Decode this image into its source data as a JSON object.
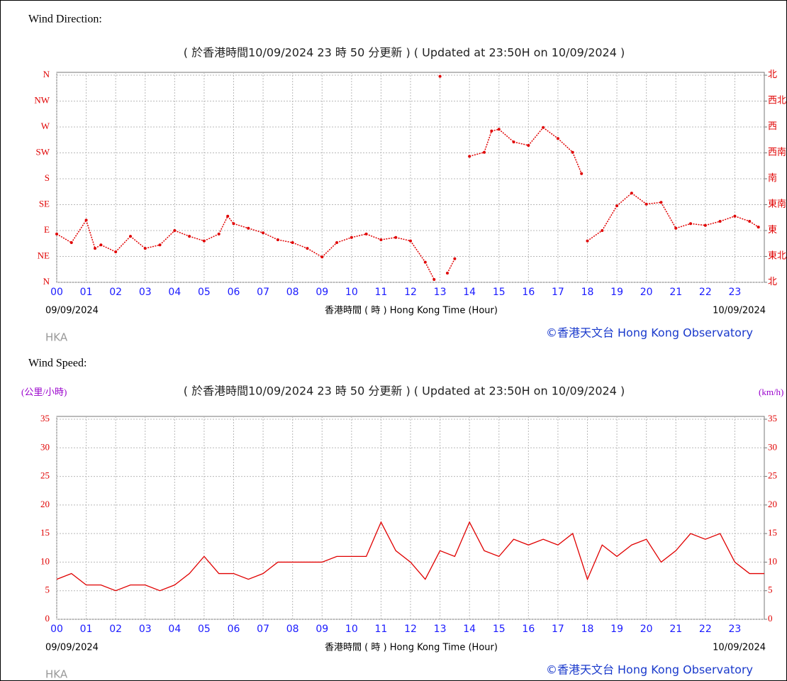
{
  "chart_data": [
    {
      "type": "scatter",
      "heading": "Wind Direction:",
      "subtitle": "( 於香港時間10/09/2024 23 時 50 分更新 ) ( Updated at 23:50H on 10/09/2024 )",
      "x_label": "香港時間 ( 時 ) Hong Kong Time (Hour)",
      "start_date": "09/09/2024",
      "end_date": "10/09/2024",
      "station": "HKA",
      "credit": "©香港天文台 Hong Kong Observatory",
      "color": "#e00000",
      "x": [
        0,
        0.5,
        1,
        1.3,
        1.5,
        2,
        2.5,
        3,
        3.5,
        4,
        4.5,
        5,
        5.5,
        5.8,
        6,
        6.5,
        7,
        7.5,
        8,
        8.5,
        9,
        9.5,
        10,
        10.5,
        11,
        11.5,
        12,
        12.5,
        12.8,
        13,
        13.25,
        13.5,
        14,
        14.5,
        14.75,
        15,
        15.5,
        16,
        16.5,
        17,
        17.5,
        17.8,
        18,
        18.5,
        19,
        19.5,
        20,
        20.5,
        21,
        21.5,
        22,
        22.5,
        23,
        23.5,
        23.8
      ],
      "values": [
        84,
        69,
        108,
        59,
        65,
        53,
        80,
        59,
        65,
        90,
        80,
        72,
        84,
        115,
        102,
        94,
        86,
        74,
        69,
        59,
        44,
        69,
        78,
        84,
        74,
        78,
        72,
        35,
        5,
        358,
        16,
        41,
        219,
        226,
        263,
        266,
        244,
        238,
        269,
        250,
        226,
        189,
        72,
        90,
        133,
        155,
        136,
        139,
        94,
        102,
        99,
        106,
        115,
        106,
        96
      ],
      "xlim": [
        0,
        24
      ],
      "xticks": [
        {
          "value": 0,
          "label": "00"
        },
        {
          "value": 1,
          "label": "01"
        },
        {
          "value": 2,
          "label": "02"
        },
        {
          "value": 3,
          "label": "03"
        },
        {
          "value": 4,
          "label": "04"
        },
        {
          "value": 5,
          "label": "05"
        },
        {
          "value": 6,
          "label": "06"
        },
        {
          "value": 7,
          "label": "07"
        },
        {
          "value": 8,
          "label": "08"
        },
        {
          "value": 9,
          "label": "09"
        },
        10,
        11,
        12,
        13,
        14,
        15,
        16,
        17,
        18,
        19,
        20,
        21,
        22,
        23
      ],
      "ylim": [
        0,
        360
      ],
      "yticks": [
        {
          "value": 0,
          "label": "N"
        },
        {
          "value": 45,
          "label": "NE"
        },
        {
          "value": 90,
          "label": "E"
        },
        {
          "value": 135,
          "label": "SE"
        },
        {
          "value": 180,
          "label": "S"
        },
        {
          "value": 225,
          "label": "SW"
        },
        {
          "value": 270,
          "label": "W"
        },
        {
          "value": 315,
          "label": "NW"
        },
        {
          "value": 360,
          "label": "N"
        }
      ],
      "y2lim": [
        0,
        360
      ],
      "y2ticks": [
        {
          "value": 0,
          "label": "北"
        },
        {
          "value": 45,
          "label": "東北"
        },
        {
          "value": 90,
          "label": "東"
        },
        {
          "value": 135,
          "label": "東南"
        },
        {
          "value": 180,
          "label": "南"
        },
        {
          "value": 225,
          "label": "西南"
        },
        {
          "value": 270,
          "label": "西"
        },
        {
          "value": 315,
          "label": "西北"
        },
        {
          "value": 360,
          "label": "北"
        }
      ],
      "grid": true
    },
    {
      "type": "line",
      "heading": "Wind Speed:",
      "subtitle": "( 於香港時間10/09/2024 23 時 50 分更新 ) ( Updated at 23:50H on 10/09/2024 )",
      "y_label": "(公里/小時)",
      "y2_label": "(km/h)",
      "x_label": "香港時間 ( 時 ) Hong Kong Time (Hour)",
      "start_date": "09/09/2024",
      "end_date": "10/09/2024",
      "station": "HKA",
      "credit": "©香港天文台 Hong Kong Observatory",
      "color": "#e00000",
      "x": [
        0,
        0.5,
        1,
        1.5,
        2,
        2.5,
        3,
        3.5,
        4,
        4.5,
        5,
        5.5,
        6,
        6.5,
        7,
        7.5,
        8,
        8.5,
        9,
        9.5,
        10,
        10.5,
        11,
        11.5,
        12,
        12.5,
        13,
        13.5,
        14,
        14.5,
        15,
        15.5,
        16,
        16.5,
        17,
        17.5,
        18,
        18.5,
        19,
        19.5,
        20,
        20.5,
        21,
        21.5,
        22,
        22.5,
        23,
        23.5,
        24
      ],
      "values": [
        7,
        8,
        6,
        6,
        5,
        6,
        6,
        5,
        6,
        8,
        11,
        8,
        8,
        7,
        8,
        10,
        10,
        10,
        10,
        11,
        11,
        11,
        17,
        12,
        10,
        7,
        12,
        11,
        17,
        12,
        11,
        14,
        13,
        14,
        13,
        15,
        7,
        13,
        11,
        13,
        14,
        10,
        12,
        15,
        14,
        15,
        10,
        8,
        8
      ],
      "xlim": [
        0,
        24
      ],
      "xticks": [
        {
          "value": 0,
          "label": "00"
        },
        {
          "value": 1,
          "label": "01"
        },
        {
          "value": 2,
          "label": "02"
        },
        {
          "value": 3,
          "label": "03"
        },
        {
          "value": 4,
          "label": "04"
        },
        {
          "value": 5,
          "label": "05"
        },
        {
          "value": 6,
          "label": "06"
        },
        {
          "value": 7,
          "label": "07"
        },
        {
          "value": 8,
          "label": "08"
        },
        {
          "value": 9,
          "label": "09"
        },
        10,
        11,
        12,
        13,
        14,
        15,
        16,
        17,
        18,
        19,
        20,
        21,
        22,
        23
      ],
      "ylim": [
        0,
        35
      ],
      "yticks": [
        0,
        5,
        10,
        15,
        20,
        25,
        30,
        35
      ],
      "y2lim": [
        0,
        35
      ],
      "y2ticks": [
        0,
        5,
        10,
        15,
        20,
        25,
        30,
        35
      ],
      "grid": true
    }
  ]
}
